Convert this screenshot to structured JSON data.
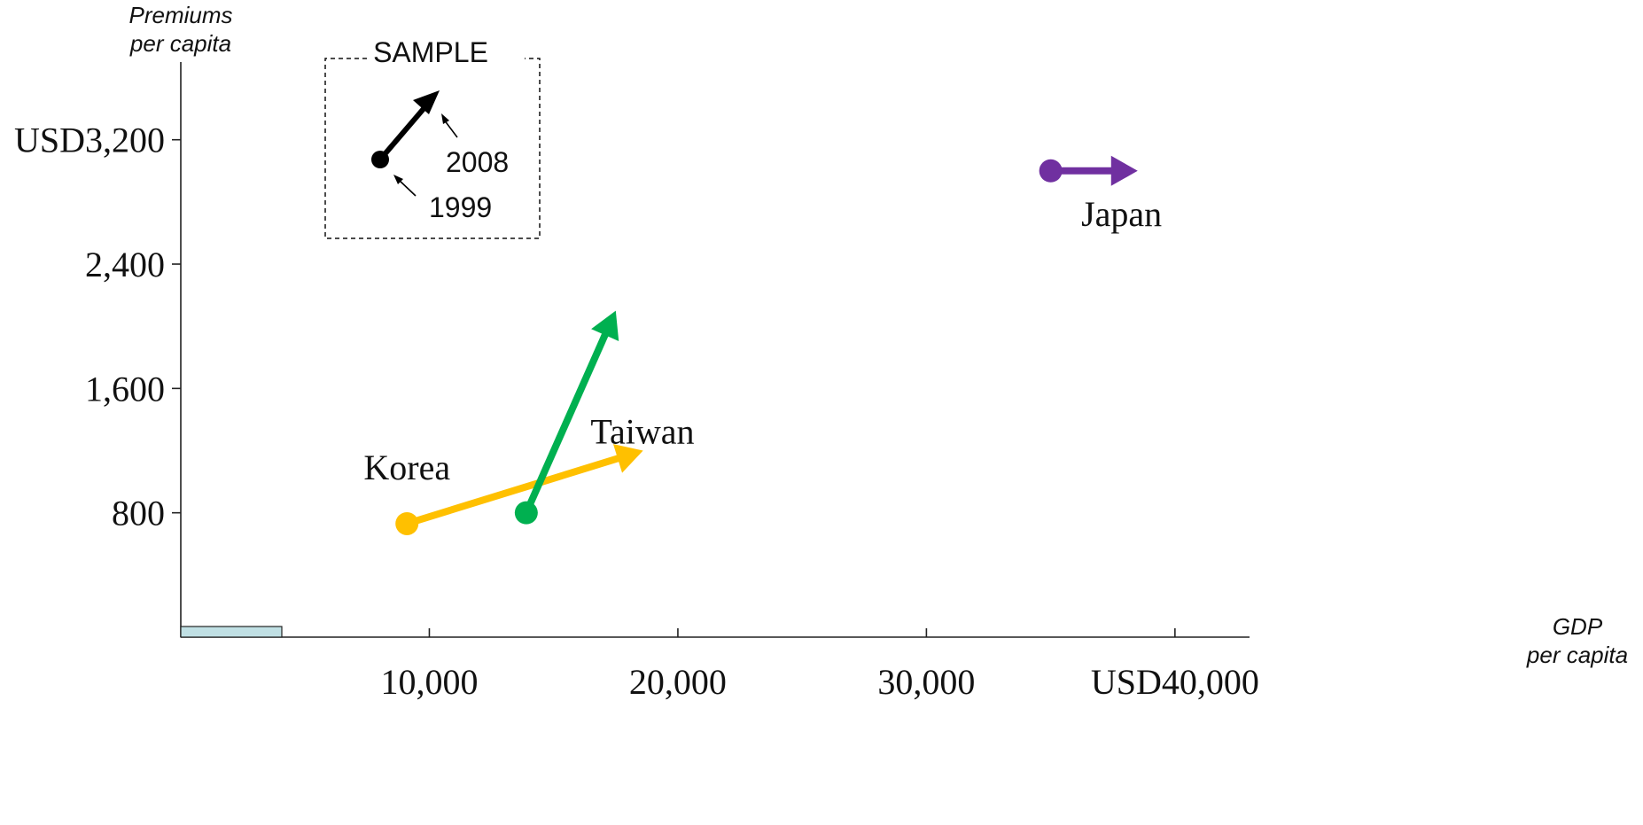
{
  "chart_data": {
    "type": "scatter",
    "subtype": "arrow-movement",
    "xlabel": "GDP per capita",
    "xlabel_lines": [
      "GDP",
      "per capita"
    ],
    "ylabel": "Premiums per capita",
    "ylabel_lines": [
      "Premiums",
      "per capita"
    ],
    "xlim": [
      0,
      43000
    ],
    "ylim": [
      0,
      3700
    ],
    "x_ticks": [
      {
        "value": 10000,
        "label": "10,000"
      },
      {
        "value": 20000,
        "label": "20,000"
      },
      {
        "value": 30000,
        "label": "30,000"
      },
      {
        "value": 40000,
        "label": "USD40,000"
      }
    ],
    "y_ticks": [
      {
        "value": 800,
        "label": "800"
      },
      {
        "value": 1600,
        "label": "1,600"
      },
      {
        "value": 2400,
        "label": "2,400"
      },
      {
        "value": 3200,
        "label": "USD3,200"
      }
    ],
    "grid": false,
    "series": [
      {
        "name": "Japan",
        "color": "#7030a0",
        "start": {
          "year": "1999",
          "x": 35000,
          "y": 3000
        },
        "end": {
          "year": "2008",
          "x": 38500,
          "y": 3000
        }
      },
      {
        "name": "Taiwan",
        "color": "#00b050",
        "start": {
          "year": "1999",
          "x": 13900,
          "y": 800
        },
        "end": {
          "year": "2008",
          "x": 17500,
          "y": 2100
        }
      },
      {
        "name": "Korea",
        "color": "#ffc000",
        "start": {
          "year": "1999",
          "x": 9100,
          "y": 730
        },
        "end": {
          "year": "2008",
          "x": 18600,
          "y": 1200
        }
      }
    ],
    "sample_legend": {
      "title": "SAMPLE",
      "start_label": "1999",
      "end_label": "2008",
      "color": "#000000"
    },
    "baseline_bar_color": "#c0e0e4"
  }
}
